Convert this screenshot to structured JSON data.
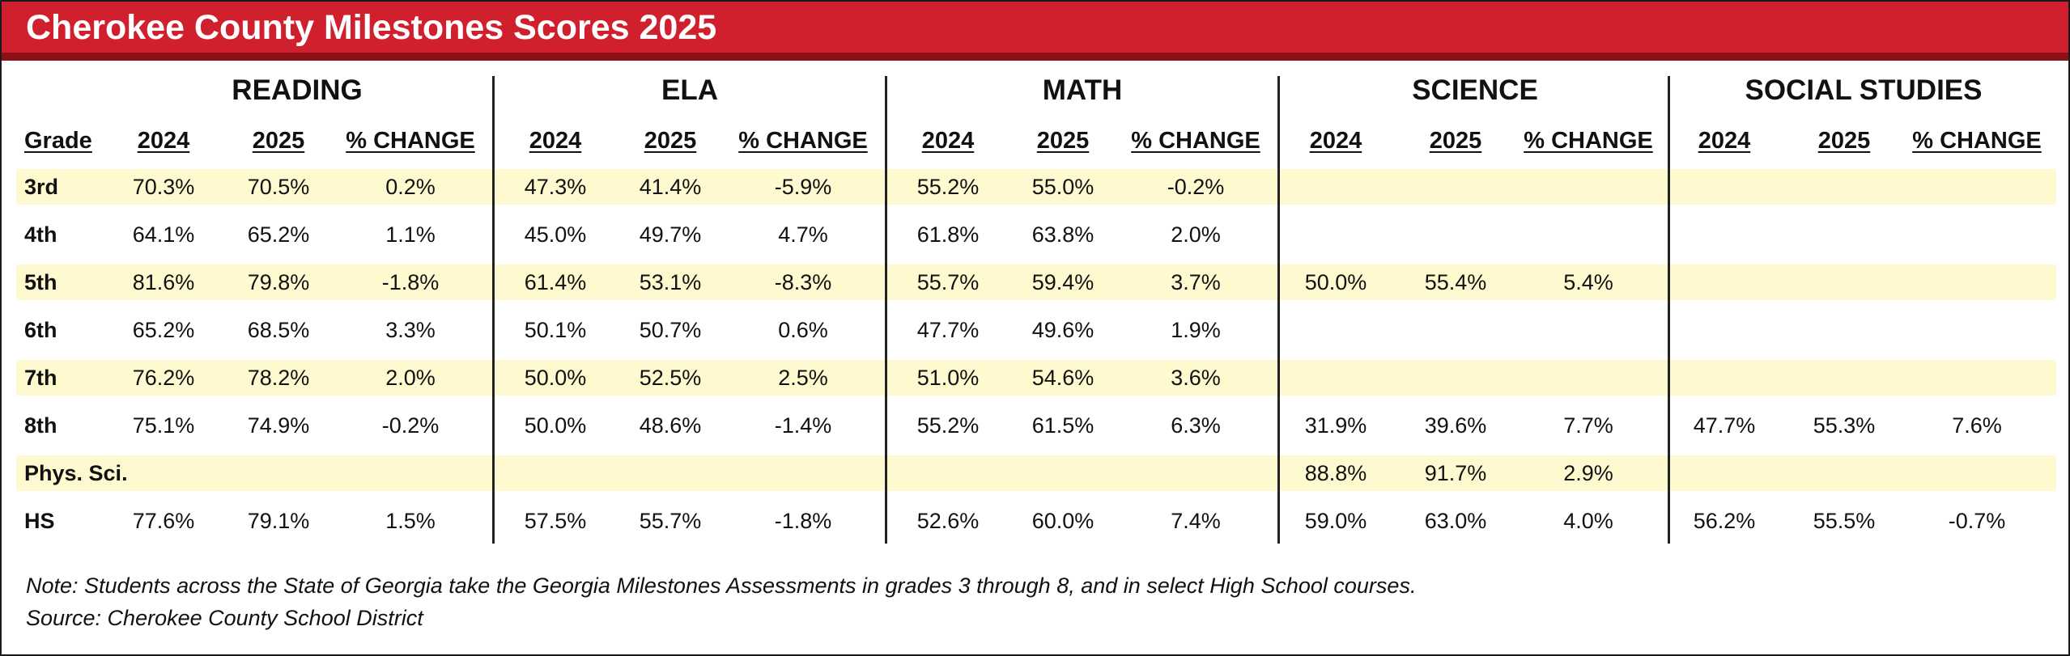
{
  "title": "Cherokee County Milestones Scores 2025",
  "colors": {
    "header_red": "#d0202e",
    "header_dark": "#8c1016",
    "band_yellow": "#fff9d0"
  },
  "subjects": [
    "READING",
    "ELA",
    "MATH",
    "SCIENCE",
    "SOCIAL STUDIES"
  ],
  "col_headers": {
    "grade": "Grade",
    "y2024": "2024",
    "y2025": "2025",
    "change": "% CHANGE"
  },
  "rows": [
    {
      "grade": "3rd",
      "reading": [
        "70.3%",
        "70.5%",
        "0.2%"
      ],
      "ela": [
        "47.3%",
        "41.4%",
        "-5.9%"
      ],
      "math": [
        "55.2%",
        "55.0%",
        "-0.2%"
      ],
      "science": [
        "",
        "",
        ""
      ],
      "social": [
        "",
        "",
        ""
      ]
    },
    {
      "grade": "4th",
      "reading": [
        "64.1%",
        "65.2%",
        "1.1%"
      ],
      "ela": [
        "45.0%",
        "49.7%",
        "4.7%"
      ],
      "math": [
        "61.8%",
        "63.8%",
        "2.0%"
      ],
      "science": [
        "",
        "",
        ""
      ],
      "social": [
        "",
        "",
        ""
      ]
    },
    {
      "grade": "5th",
      "reading": [
        "81.6%",
        "79.8%",
        "-1.8%"
      ],
      "ela": [
        "61.4%",
        "53.1%",
        "-8.3%"
      ],
      "math": [
        "55.7%",
        "59.4%",
        "3.7%"
      ],
      "science": [
        "50.0%",
        "55.4%",
        "5.4%"
      ],
      "social": [
        "",
        "",
        ""
      ]
    },
    {
      "grade": "6th",
      "reading": [
        "65.2%",
        "68.5%",
        "3.3%"
      ],
      "ela": [
        "50.1%",
        "50.7%",
        "0.6%"
      ],
      "math": [
        "47.7%",
        "49.6%",
        "1.9%"
      ],
      "science": [
        "",
        "",
        ""
      ],
      "social": [
        "",
        "",
        ""
      ]
    },
    {
      "grade": "7th",
      "reading": [
        "76.2%",
        "78.2%",
        "2.0%"
      ],
      "ela": [
        "50.0%",
        "52.5%",
        "2.5%"
      ],
      "math": [
        "51.0%",
        "54.6%",
        "3.6%"
      ],
      "science": [
        "",
        "",
        ""
      ],
      "social": [
        "",
        "",
        ""
      ]
    },
    {
      "grade": "8th",
      "reading": [
        "75.1%",
        "74.9%",
        "-0.2%"
      ],
      "ela": [
        "50.0%",
        "48.6%",
        "-1.4%"
      ],
      "math": [
        "55.2%",
        "61.5%",
        "6.3%"
      ],
      "science": [
        "31.9%",
        "39.6%",
        "7.7%"
      ],
      "social": [
        "47.7%",
        "55.3%",
        "7.6%"
      ]
    },
    {
      "grade": "Phys. Sci.",
      "reading": [
        "",
        "",
        ""
      ],
      "ela": [
        "",
        "",
        ""
      ],
      "math": [
        "",
        "",
        ""
      ],
      "science": [
        "88.8%",
        "91.7%",
        "2.9%"
      ],
      "social": [
        "",
        "",
        ""
      ]
    },
    {
      "grade": "HS",
      "reading": [
        "77.6%",
        "79.1%",
        "1.5%"
      ],
      "ela": [
        "57.5%",
        "55.7%",
        "-1.8%"
      ],
      "math": [
        "52.6%",
        "60.0%",
        "7.4%"
      ],
      "science": [
        "59.0%",
        "63.0%",
        "4.0%"
      ],
      "social": [
        "56.2%",
        "55.5%",
        "-0.7%"
      ]
    }
  ],
  "note": "Note:  Students across the State of Georgia take the Georgia Milestones Assessments in grades 3 through 8, and in select High School courses.",
  "source": "Source: Cherokee County School District"
}
